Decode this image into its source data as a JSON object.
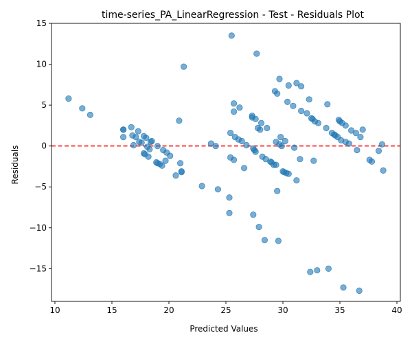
{
  "chart_data": {
    "type": "scatter",
    "title": "time-series_PA_LinearRegression - Test - Residuals Plot",
    "xlabel": "Predicted Values",
    "ylabel": "Residuals",
    "xlim": [
      9.7,
      40.3
    ],
    "ylim": [
      -19.0,
      15.0
    ],
    "xticks": [
      10,
      15,
      20,
      25,
      30,
      35,
      40
    ],
    "yticks": [
      -15,
      -10,
      -5,
      0,
      5,
      10,
      15
    ],
    "grid": false,
    "reference_line": {
      "y": 0,
      "style": "dashed",
      "color": "#ff0000"
    },
    "point_color": "#1f77b4",
    "points": [
      [
        11.2,
        5.8
      ],
      [
        12.4,
        4.6
      ],
      [
        13.1,
        3.8
      ],
      [
        16.0,
        2.0
      ],
      [
        16.0,
        2.0
      ],
      [
        16.0,
        1.1
      ],
      [
        16.7,
        2.3
      ],
      [
        16.8,
        1.3
      ],
      [
        16.9,
        0.1
      ],
      [
        17.1,
        1.1
      ],
      [
        17.3,
        1.8
      ],
      [
        17.4,
        0.5
      ],
      [
        17.6,
        0.4
      ],
      [
        17.8,
        1.2
      ],
      [
        17.8,
        -0.9
      ],
      [
        17.9,
        -1.0
      ],
      [
        18.0,
        1.0
      ],
      [
        18.1,
        -0.1
      ],
      [
        18.2,
        -1.3
      ],
      [
        18.3,
        -0.4
      ],
      [
        18.4,
        0.5
      ],
      [
        18.5,
        0.6
      ],
      [
        18.9,
        -2.0
      ],
      [
        19.0,
        -2.1
      ],
      [
        19.0,
        0.0
      ],
      [
        19.2,
        -2.2
      ],
      [
        19.4,
        -2.4
      ],
      [
        19.5,
        -0.5
      ],
      [
        19.7,
        -1.8
      ],
      [
        19.8,
        -0.8
      ],
      [
        20.1,
        -1.2
      ],
      [
        20.6,
        -3.6
      ],
      [
        20.9,
        3.1
      ],
      [
        21.0,
        -2.1
      ],
      [
        21.1,
        -3.1
      ],
      [
        21.1,
        -3.2
      ],
      [
        21.3,
        9.7
      ],
      [
        22.9,
        -4.9
      ],
      [
        23.7,
        0.3
      ],
      [
        24.1,
        0.0
      ],
      [
        24.3,
        -5.3
      ],
      [
        25.3,
        -6.3
      ],
      [
        25.3,
        -8.2
      ],
      [
        25.4,
        1.6
      ],
      [
        25.4,
        -1.4
      ],
      [
        25.5,
        13.5
      ],
      [
        25.7,
        5.2
      ],
      [
        25.7,
        4.2
      ],
      [
        25.7,
        -1.7
      ],
      [
        25.8,
        1.1
      ],
      [
        26.1,
        0.8
      ],
      [
        26.2,
        4.7
      ],
      [
        26.4,
        0.6
      ],
      [
        26.6,
        -2.7
      ],
      [
        26.8,
        0.1
      ],
      [
        27.3,
        3.7
      ],
      [
        27.3,
        3.5
      ],
      [
        27.4,
        -0.3
      ],
      [
        27.4,
        -8.4
      ],
      [
        27.5,
        -0.5
      ],
      [
        27.6,
        3.3
      ],
      [
        27.6,
        -0.7
      ],
      [
        27.7,
        11.3
      ],
      [
        27.8,
        2.2
      ],
      [
        27.9,
        -9.9
      ],
      [
        28.0,
        2.0
      ],
      [
        28.1,
        2.8
      ],
      [
        28.2,
        -1.3
      ],
      [
        28.4,
        -11.5
      ],
      [
        28.5,
        -1.6
      ],
      [
        28.6,
        2.2
      ],
      [
        28.9,
        -1.9
      ],
      [
        29.0,
        -2.0
      ],
      [
        29.2,
        -2.3
      ],
      [
        29.3,
        6.7
      ],
      [
        29.4,
        0.5
      ],
      [
        29.4,
        -2.3
      ],
      [
        29.5,
        -5.5
      ],
      [
        29.5,
        6.4
      ],
      [
        29.6,
        -11.6
      ],
      [
        29.7,
        0.2
      ],
      [
        29.7,
        8.2
      ],
      [
        29.8,
        1.1
      ],
      [
        29.9,
        0.0
      ],
      [
        30.0,
        -3.1
      ],
      [
        30.1,
        -3.2
      ],
      [
        30.2,
        0.6
      ],
      [
        30.3,
        -3.3
      ],
      [
        30.4,
        5.4
      ],
      [
        30.5,
        -3.4
      ],
      [
        30.5,
        7.4
      ],
      [
        30.9,
        4.9
      ],
      [
        31.0,
        -0.2
      ],
      [
        31.2,
        -4.2
      ],
      [
        31.2,
        7.7
      ],
      [
        31.5,
        -1.6
      ],
      [
        31.6,
        4.3
      ],
      [
        31.6,
        7.3
      ],
      [
        32.1,
        4.0
      ],
      [
        32.3,
        5.7
      ],
      [
        32.4,
        -15.4
      ],
      [
        32.5,
        3.4
      ],
      [
        32.6,
        3.3
      ],
      [
        32.7,
        -1.8
      ],
      [
        32.8,
        3.0
      ],
      [
        33.0,
        -15.2
      ],
      [
        33.1,
        2.8
      ],
      [
        33.8,
        2.2
      ],
      [
        33.9,
        5.1
      ],
      [
        34.0,
        -15.0
      ],
      [
        34.3,
        1.6
      ],
      [
        34.5,
        1.4
      ],
      [
        34.6,
        1.3
      ],
      [
        34.8,
        1.1
      ],
      [
        34.9,
        3.2
      ],
      [
        35.0,
        3.0
      ],
      [
        35.1,
        0.7
      ],
      [
        35.2,
        2.8
      ],
      [
        35.3,
        -17.3
      ],
      [
        35.5,
        0.5
      ],
      [
        35.5,
        2.5
      ],
      [
        35.8,
        0.3
      ],
      [
        36.0,
        1.9
      ],
      [
        36.4,
        1.6
      ],
      [
        36.5,
        -0.5
      ],
      [
        36.7,
        -17.7
      ],
      [
        36.8,
        1.1
      ],
      [
        37.0,
        2.0
      ],
      [
        37.6,
        -1.7
      ],
      [
        37.8,
        -1.9
      ],
      [
        38.4,
        -0.6
      ],
      [
        38.7,
        0.2
      ],
      [
        38.8,
        -3.0
      ]
    ]
  }
}
